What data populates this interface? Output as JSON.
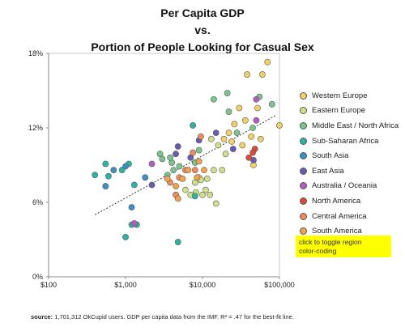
{
  "title_line1": "Per Capita GDP",
  "title_line2": "vs.",
  "title_line3": "Portion of People Looking for Casual Sex",
  "toggle_line1": "click to toggle region",
  "toggle_line2": "color-coding",
  "source_label": "source:",
  "source_text": "1,701,312 OkCupid users. GDP per capita data from the IMF.  R² = .47 for the best-fit line.",
  "colors": {
    "Western Europe": "#f2d064",
    "Eastern Europe": "#cfe08a",
    "Middle East / North Africa": "#7cc48d",
    "Sub-Saharan Africa": "#2bb3a4",
    "South Asia": "#3a8fc4",
    "East Asia": "#6a5bb0",
    "Australia / Oceania": "#b15ec0",
    "North America": "#e0483a",
    "Central America": "#f08a5a",
    "South America": "#f2a44a"
  },
  "chart_data": {
    "type": "scatter",
    "title": "Per Capita GDP vs. Portion of People Looking for Casual Sex",
    "xlabel": "",
    "ylabel": "",
    "x_scale": "log",
    "xlim": [
      100,
      100000
    ],
    "ylim": [
      0,
      18
    ],
    "x_ticks": [
      "$100",
      "$1,000",
      "$10,000",
      "$100,000"
    ],
    "y_ticks": [
      "0%",
      "6%",
      "12%",
      "18%"
    ],
    "grid": false,
    "legend_position": "right",
    "legend": [
      "Western Europe",
      "Eastern Europe",
      "Middle East / North Africa",
      "Sub-Saharan Africa",
      "South Asia",
      "East Asia",
      "Australia / Oceania",
      "North America",
      "Central America",
      "South America"
    ],
    "trendline": {
      "x": [
        400,
        90000
      ],
      "y": [
        5.0,
        13.0
      ]
    },
    "series": [
      {
        "name": "Western Europe",
        "points": [
          [
            38000,
            16.3
          ],
          [
            70000,
            17.3
          ],
          [
            60000,
            16.3
          ],
          [
            30000,
            13.6
          ],
          [
            26000,
            12.3
          ],
          [
            22000,
            11.6
          ],
          [
            43000,
            11.3
          ],
          [
            33000,
            10.6
          ],
          [
            100000,
            12.2
          ],
          [
            57000,
            11.1
          ],
          [
            52000,
            13.6
          ],
          [
            36000,
            12.6
          ],
          [
            46000,
            9.0
          ],
          [
            19000,
            11.1
          ],
          [
            24000,
            10.9
          ]
        ]
      },
      {
        "name": "Eastern Europe",
        "points": [
          [
            13000,
            11.1
          ],
          [
            16000,
            10.6
          ],
          [
            14000,
            8.6
          ],
          [
            10000,
            6.6
          ],
          [
            11000,
            7.0
          ],
          [
            8000,
            7.6
          ],
          [
            9000,
            8.0
          ],
          [
            6000,
            7.0
          ],
          [
            7000,
            6.6
          ],
          [
            12500,
            6.6
          ],
          [
            15000,
            5.9
          ],
          [
            11500,
            7.9
          ],
          [
            20000,
            9.9
          ],
          [
            18000,
            8.6
          ],
          [
            9500,
            7.8
          ],
          [
            8200,
            6.8
          ]
        ]
      },
      {
        "name": "Middle East / North Africa",
        "points": [
          [
            14000,
            14.3
          ],
          [
            21000,
            14.8
          ],
          [
            3000,
            9.5
          ],
          [
            4000,
            9.2
          ],
          [
            5000,
            8.9
          ],
          [
            3500,
            8.2
          ],
          [
            8000,
            9.2
          ],
          [
            9000,
            10.2
          ],
          [
            55000,
            14.5
          ],
          [
            22000,
            13.3
          ],
          [
            45000,
            12.0
          ],
          [
            80000,
            13.9
          ],
          [
            2800,
            9.9
          ],
          [
            4200,
            8.6
          ],
          [
            28000,
            11.6
          ],
          [
            3800,
            9.6
          ]
        ]
      },
      {
        "name": "Sub-Saharan Africa",
        "points": [
          [
            400,
            8.2
          ],
          [
            550,
            9.1
          ],
          [
            1000,
            3.2
          ],
          [
            1200,
            4.2
          ],
          [
            1400,
            4.2
          ],
          [
            4800,
            2.8
          ],
          [
            7500,
            12.2
          ],
          [
            8000,
            6.5
          ],
          [
            1100,
            9.1
          ],
          [
            900,
            8.6
          ],
          [
            600,
            8.1
          ],
          [
            1300,
            7.4
          ]
        ]
      },
      {
        "name": "South Asia",
        "points": [
          [
            700,
            8.6
          ],
          [
            1000,
            8.9
          ],
          [
            1200,
            5.6
          ],
          [
            1800,
            8.0
          ],
          [
            550,
            7.3
          ]
        ]
      },
      {
        "name": "East Asia",
        "points": [
          [
            4800,
            10.5
          ],
          [
            9000,
            11.0
          ],
          [
            7000,
            9.6
          ],
          [
            15000,
            11.6
          ],
          [
            46000,
            9.4
          ],
          [
            2200,
            7.4
          ],
          [
            4500,
            9.9
          ],
          [
            25000,
            10.3
          ]
        ]
      },
      {
        "name": "Australia / Oceania",
        "points": [
          [
            50000,
            12.6
          ],
          [
            50000,
            14.3
          ],
          [
            1300,
            4.3
          ],
          [
            2200,
            9.1
          ]
        ]
      },
      {
        "name": "North America",
        "points": [
          [
            48000,
            10.3
          ],
          [
            40000,
            9.6
          ],
          [
            45000,
            10.0
          ]
        ]
      },
      {
        "name": "Central America",
        "points": [
          [
            5000,
            8.0
          ],
          [
            6000,
            8.6
          ],
          [
            7500,
            10.0
          ],
          [
            3800,
            7.6
          ],
          [
            4500,
            6.6
          ],
          [
            8000,
            8.6
          ],
          [
            9500,
            11.3
          ]
        ]
      },
      {
        "name": "South America",
        "points": [
          [
            4500,
            7.3
          ],
          [
            5500,
            7.9
          ],
          [
            8500,
            8.0
          ],
          [
            10500,
            8.6
          ],
          [
            6500,
            8.6
          ],
          [
            3500,
            7.9
          ],
          [
            4800,
            6.3
          ],
          [
            9000,
            9.3
          ]
        ]
      }
    ]
  }
}
